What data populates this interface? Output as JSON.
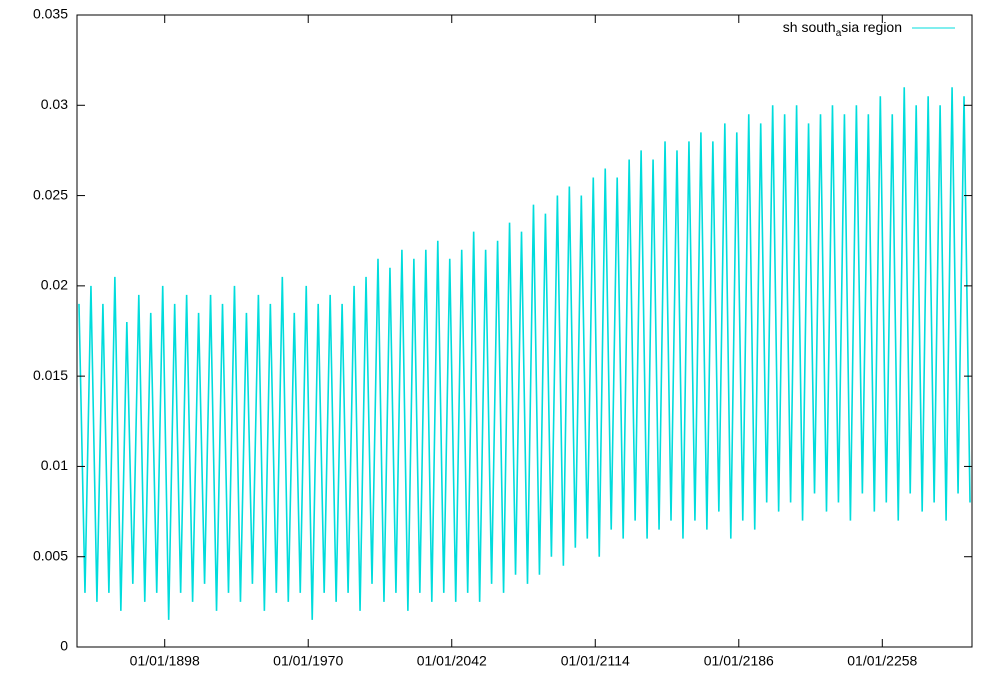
{
  "chart_data": {
    "type": "line",
    "x": [
      1855,
      1858,
      1861,
      1864,
      1867,
      1870,
      1873,
      1876,
      1879,
      1882,
      1885,
      1888,
      1891,
      1894,
      1897,
      1900,
      1903,
      1906,
      1909,
      1912,
      1915,
      1918,
      1921,
      1924,
      1927,
      1930,
      1933,
      1936,
      1939,
      1942,
      1945,
      1948,
      1951,
      1954,
      1957,
      1960,
      1963,
      1966,
      1969,
      1972,
      1975,
      1978,
      1981,
      1984,
      1987,
      1990,
      1993,
      1996,
      1999,
      2002,
      2005,
      2008,
      2011,
      2014,
      2017,
      2020,
      2023,
      2026,
      2029,
      2032,
      2035,
      2038,
      2041,
      2044,
      2047,
      2050,
      2053,
      2056,
      2059,
      2062,
      2065,
      2068,
      2071,
      2074,
      2077,
      2080,
      2083,
      2086,
      2089,
      2092,
      2095,
      2098,
      2101,
      2104,
      2107,
      2110,
      2113,
      2116,
      2119,
      2122,
      2125,
      2128,
      2131,
      2134,
      2137,
      2140,
      2143,
      2146,
      2149,
      2152,
      2155,
      2158,
      2161,
      2164,
      2167,
      2170,
      2173,
      2176,
      2179,
      2182,
      2185,
      2188,
      2191,
      2194,
      2197,
      2200,
      2203,
      2206,
      2209,
      2212,
      2215,
      2218,
      2221,
      2224,
      2227,
      2230,
      2233,
      2236,
      2239,
      2242,
      2245,
      2248,
      2251,
      2254,
      2257,
      2260,
      2263,
      2266,
      2269,
      2272,
      2275,
      2278,
      2281,
      2284,
      2287,
      2290,
      2293,
      2296,
      2299,
      2302
    ],
    "series": [
      {
        "name": "sh south_asia region",
        "color": "#00dcdc",
        "values": [
          0.019,
          0.003,
          0.02,
          0.0025,
          0.019,
          0.003,
          0.0205,
          0.002,
          0.018,
          0.0035,
          0.0195,
          0.0025,
          0.0185,
          0.003,
          0.02,
          0.0015,
          0.019,
          0.003,
          0.0195,
          0.0025,
          0.0185,
          0.0035,
          0.0195,
          0.002,
          0.019,
          0.003,
          0.02,
          0.0025,
          0.0185,
          0.0035,
          0.0195,
          0.002,
          0.019,
          0.003,
          0.0205,
          0.0025,
          0.0185,
          0.003,
          0.02,
          0.0015,
          0.019,
          0.003,
          0.0195,
          0.0025,
          0.019,
          0.003,
          0.02,
          0.002,
          0.0205,
          0.0035,
          0.0215,
          0.0025,
          0.021,
          0.003,
          0.022,
          0.002,
          0.0215,
          0.003,
          0.022,
          0.0025,
          0.0225,
          0.003,
          0.0215,
          0.0025,
          0.022,
          0.003,
          0.023,
          0.0025,
          0.022,
          0.0035,
          0.0225,
          0.003,
          0.0235,
          0.004,
          0.023,
          0.0035,
          0.0245,
          0.004,
          0.024,
          0.005,
          0.025,
          0.0045,
          0.0255,
          0.0055,
          0.025,
          0.006,
          0.026,
          0.005,
          0.0265,
          0.0065,
          0.026,
          0.006,
          0.027,
          0.007,
          0.0275,
          0.006,
          0.027,
          0.0065,
          0.028,
          0.007,
          0.0275,
          0.006,
          0.028,
          0.007,
          0.0285,
          0.0065,
          0.028,
          0.0075,
          0.029,
          0.006,
          0.0285,
          0.007,
          0.0295,
          0.0065,
          0.029,
          0.008,
          0.03,
          0.0075,
          0.0295,
          0.008,
          0.03,
          0.007,
          0.029,
          0.0085,
          0.0295,
          0.0075,
          0.03,
          0.008,
          0.0295,
          0.007,
          0.03,
          0.0085,
          0.0295,
          0.0075,
          0.0305,
          0.008,
          0.0295,
          0.007,
          0.031,
          0.0085,
          0.03,
          0.0075,
          0.0305,
          0.008,
          0.03,
          0.007,
          0.031,
          0.0085,
          0.0305,
          0.008
        ]
      }
    ],
    "xlim": [
      1854,
      2303
    ],
    "xticks": [
      {
        "value": 1898,
        "label": "01/01/1898"
      },
      {
        "value": 1970,
        "label": "01/01/1970"
      },
      {
        "value": 2042,
        "label": "01/01/2042"
      },
      {
        "value": 2114,
        "label": "01/01/2114"
      },
      {
        "value": 2186,
        "label": "01/01/2186"
      },
      {
        "value": 2258,
        "label": "01/01/2258"
      }
    ],
    "ylim": [
      0,
      0.035
    ],
    "yticks": [
      0,
      0.005,
      0.01,
      0.015,
      0.02,
      0.025,
      0.03,
      0.035
    ],
    "grid": false,
    "legend": "top-right"
  }
}
